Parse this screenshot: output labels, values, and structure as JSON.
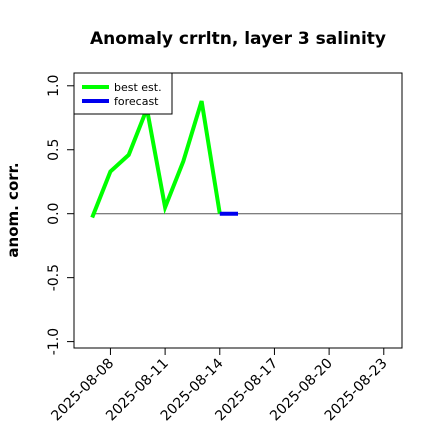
{
  "chart_data": {
    "type": "line",
    "title": "Anomaly crrltn, layer 3 salinity",
    "xlabel": "",
    "ylabel": "anom. corr.",
    "x_domain": [
      "2025-08-06",
      "2025-08-24"
    ],
    "ylim": [
      -1.05,
      1.1
    ],
    "y_ticks": [
      -1.0,
      -0.5,
      0.0,
      0.5,
      1.0
    ],
    "y_tick_labels": [
      "-1.0",
      "-0.5",
      "0.0",
      "0.5",
      "1.0"
    ],
    "x_ticks": [
      "2025-08-08",
      "2025-08-11",
      "2025-08-14",
      "2025-08-17",
      "2025-08-20",
      "2025-08-23"
    ],
    "highlight_tick": "2025-08-14",
    "highlight_color": "#228b22",
    "zero_line": true,
    "grid": false,
    "legend": {
      "position": "top-left",
      "entries": [
        {
          "label": "best est.",
          "color": "#00ff00"
        },
        {
          "label": "forecast",
          "color": "#0000ee"
        }
      ]
    },
    "series": [
      {
        "name": "best est.",
        "color": "#00ff00",
        "x": [
          "2025-08-07",
          "2025-08-08",
          "2025-08-09",
          "2025-08-10",
          "2025-08-11",
          "2025-08-12",
          "2025-08-13",
          "2025-08-14"
        ],
        "y": [
          -0.03,
          0.33,
          0.46,
          0.82,
          0.05,
          0.41,
          0.88,
          0.0
        ]
      },
      {
        "name": "forecast",
        "color": "#0000ee",
        "x": [
          "2025-08-14",
          "2025-08-15"
        ],
        "y": [
          0.0,
          0.0
        ]
      }
    ]
  }
}
